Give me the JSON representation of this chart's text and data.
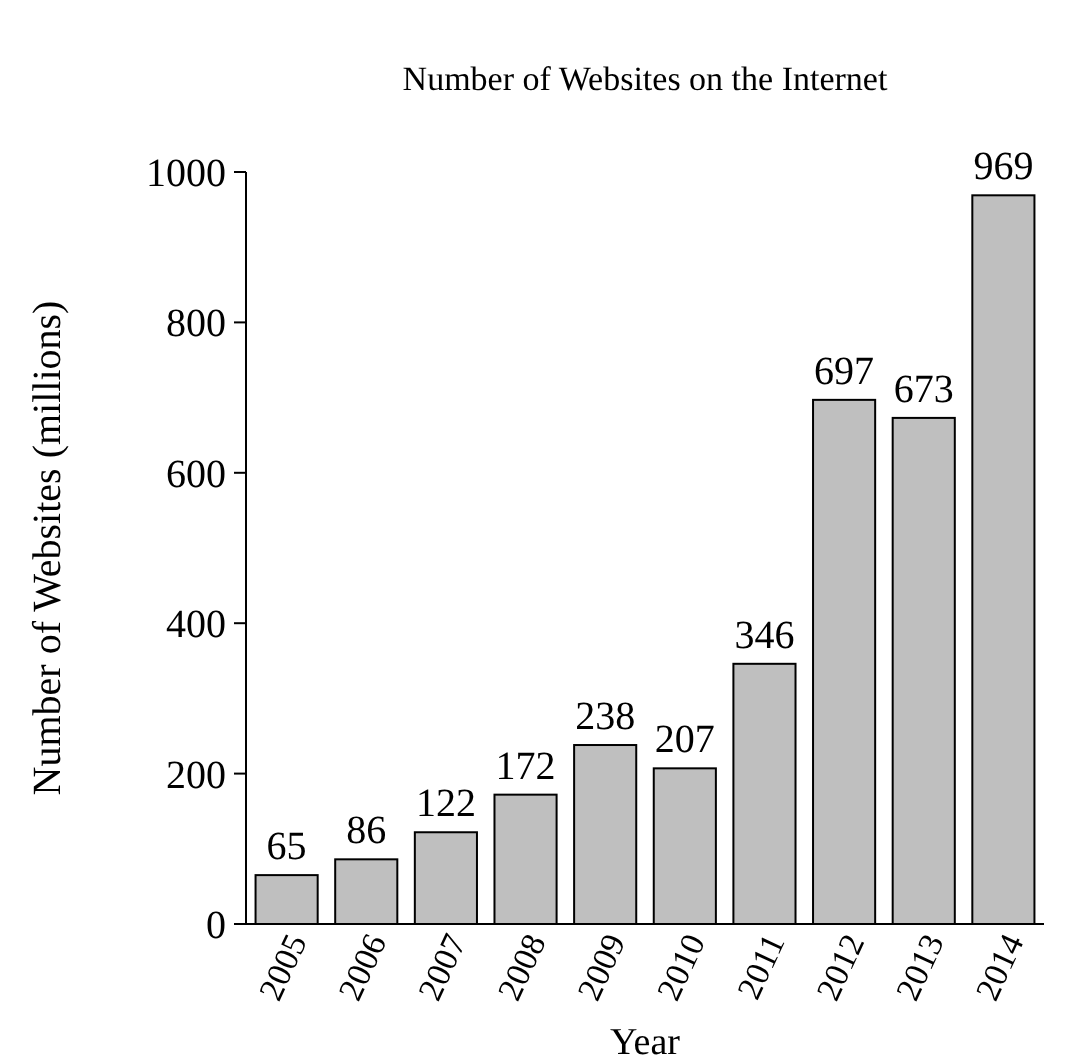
{
  "chart_data": {
    "type": "bar",
    "title": "Number of Websites on the Internet",
    "xlabel": "Year",
    "ylabel": "Number of Websites (millions)",
    "categories": [
      "2005",
      "2006",
      "2007",
      "2008",
      "2009",
      "2010",
      "2011",
      "2012",
      "2013",
      "2014"
    ],
    "values": [
      65,
      86,
      122,
      172,
      238,
      207,
      346,
      697,
      673,
      969
    ],
    "color": "#bfbfbf",
    "ylim": [
      0,
      1000
    ],
    "yticks": [
      0,
      200,
      400,
      600,
      800,
      1000
    ],
    "data_labels": true
  }
}
